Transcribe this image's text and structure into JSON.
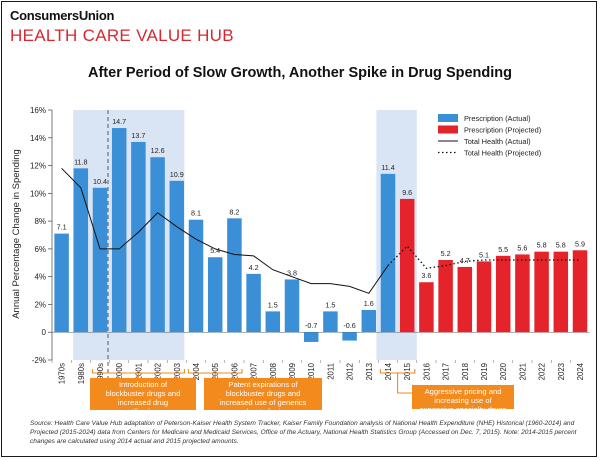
{
  "header": {
    "brand": "ConsumersUnion",
    "hub": "HEALTH CARE VALUE HUB"
  },
  "chart_data": {
    "type": "bar",
    "title": "After Period of Slow Growth, Another Spike in Drug Spending",
    "ylabel": "Annual Percentage Change in Spending",
    "ylim": [
      -2,
      16
    ],
    "yticks": [
      "-2%",
      "0",
      "2%",
      "4%",
      "6%",
      "8%",
      "10%",
      "12%",
      "14%",
      "16%"
    ],
    "categories": [
      "1970s",
      "1980s",
      "1990s",
      "2000",
      "2001",
      "2002",
      "2003",
      "2004",
      "2005",
      "2006",
      "2007",
      "2008",
      "2009",
      "2010",
      "2011",
      "2012",
      "2013",
      "2014",
      "2015",
      "2016",
      "2017",
      "2018",
      "2019",
      "2020",
      "2021",
      "2022",
      "2023",
      "2024"
    ],
    "series": [
      {
        "name": "Prescription (Actual)",
        "color": "#3b8fd6",
        "values": [
          7.1,
          11.8,
          10.4,
          14.7,
          13.7,
          12.6,
          10.9,
          8.1,
          5.4,
          8.2,
          4.2,
          1.5,
          3.8,
          -0.7,
          1.5,
          -0.6,
          1.6,
          11.4,
          null,
          null,
          null,
          null,
          null,
          null,
          null,
          null,
          null,
          null
        ]
      },
      {
        "name": "Prescription (Projected)",
        "color": "#e4232b",
        "values": [
          null,
          null,
          null,
          null,
          null,
          null,
          null,
          null,
          null,
          null,
          null,
          null,
          null,
          null,
          null,
          null,
          null,
          null,
          9.6,
          3.6,
          5.2,
          4.7,
          5.1,
          5.5,
          5.6,
          5.8,
          5.8,
          5.9
        ]
      },
      {
        "name": "Total Health (Actual)",
        "color": "#111111",
        "style": "solid",
        "values": [
          11.8,
          10.4,
          6.0,
          6.0,
          7.2,
          8.6,
          7.6,
          6.7,
          6.0,
          5.6,
          5.5,
          4.5,
          4.0,
          3.5,
          3.5,
          3.3,
          2.8,
          4.8,
          null,
          null,
          null,
          null,
          null,
          null,
          null,
          null,
          null,
          null
        ]
      },
      {
        "name": "Total Health (Projected)",
        "color": "#111111",
        "style": "dotted",
        "values": [
          null,
          null,
          null,
          null,
          null,
          null,
          null,
          null,
          null,
          null,
          null,
          null,
          null,
          null,
          null,
          null,
          null,
          4.8,
          6.2,
          4.6,
          4.8,
          5.1,
          5.2,
          5.2,
          5.2,
          5.2,
          5.2,
          5.2
        ]
      }
    ],
    "data_labels": [
      "7.1",
      "11.8",
      "10.4",
      "14.7",
      "13.7",
      "12.6",
      "10.9",
      "8.1",
      "5.4",
      "8.2",
      "4.2",
      "1.5",
      "3.8",
      "-0.7",
      "1.5",
      "-0.6",
      "1.6",
      "11.4",
      "9.6",
      "3.6",
      "5.2",
      "4.7",
      "5.1",
      "5.5",
      "5.6",
      "5.8",
      "5.8",
      "5.9"
    ],
    "legend": {
      "placement": "top-right",
      "items": [
        "Prescription (Actual)",
        "Prescription (Projected)",
        "Total Health (Actual)",
        "Total Health (Projected)"
      ]
    },
    "highlight_periods": [
      {
        "from": "1990s",
        "to": "2003",
        "label": "Introduction of blockbuster drugs and increased drug utilization"
      },
      {
        "from": "2004",
        "to": "2006",
        "label": "Patent expirations of blockbuster drugs and increased use of generics moderated prices"
      },
      {
        "from": "2014",
        "to": "2015",
        "label": "Aggressive pricing and increasing use of expensive specialty drugs"
      }
    ],
    "annotation_color": "#f28a1e",
    "shade_color": "#d9e5f5"
  },
  "source_note": "Source: Health Care Value Hub adaptation of Peterson-Kaiser Health System Tracker, Kaiser Family Foundation analysis of National Health Expenditure (NHE) Historical (1960-2014) and Projected (2015-2024) data from Centers for Medicare and Medicaid Services, Office of the Actuary, National Health Statistics Group (Accessed on Dec. 7, 2015). Note: 2014-2015 percent changes are calculated using 2014 actual and 2015 projected amounts."
}
